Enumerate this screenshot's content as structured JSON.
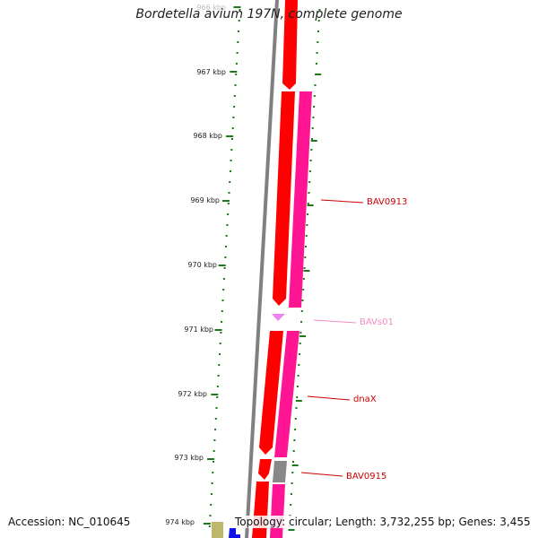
{
  "title": "Bordetella avium 197N, complete genome",
  "accession": "Accession: NC_010645",
  "summary": "Topology: circular; Length: 3,732,255 bp; Genes: 3,455",
  "ruler": {
    "labels": [
      "966 kbp",
      "967 kbp",
      "968 kbp",
      "969 kbp",
      "970 kbp",
      "971 kbp",
      "972 kbp",
      "973 kbp",
      "974 kbp"
    ],
    "tick_color": "#1a7a1a",
    "faded_label_color": "#bbbbbb"
  },
  "gene_labels": [
    {
      "text": "BAV0913",
      "color": "#cc0000"
    },
    {
      "text": "BAVs01",
      "color": "#f08cbf"
    },
    {
      "text": "dnaX",
      "color": "#cc0000"
    },
    {
      "text": "BAV0915",
      "color": "#cc0000"
    }
  ],
  "colors": {
    "cds": "#ff0000",
    "gene": "#ff1493",
    "backbone": "#808080",
    "rna_marker": "#ee82ee",
    "gap": "#888888",
    "olive": "#bdb76b",
    "blue": "#1010ee"
  }
}
